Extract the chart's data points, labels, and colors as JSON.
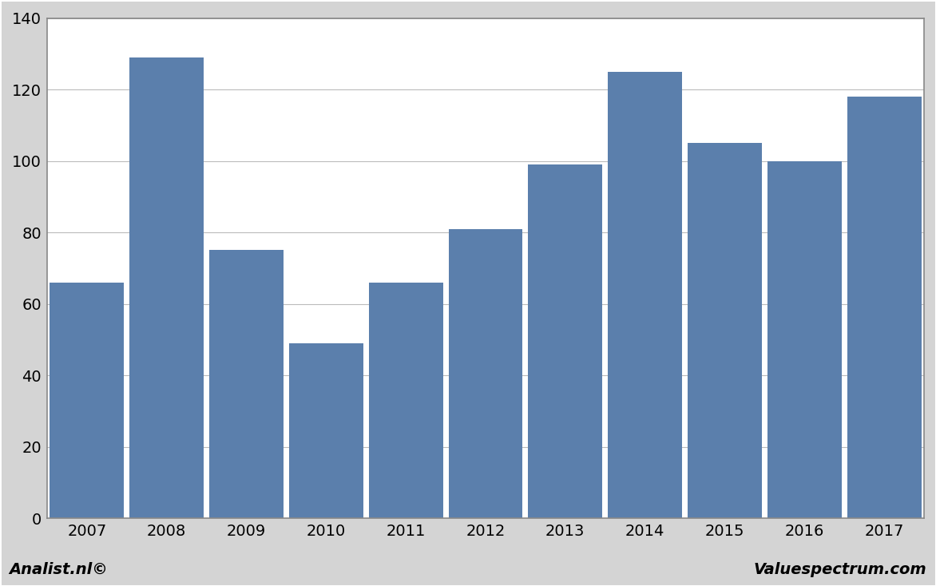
{
  "categories": [
    "2007",
    "2008",
    "2009",
    "2010",
    "2011",
    "2012",
    "2013",
    "2014",
    "2015",
    "2016",
    "2017"
  ],
  "values": [
    66,
    129,
    75,
    49,
    66,
    81,
    99,
    125,
    105,
    100,
    118
  ],
  "bar_color": "#5b7fac",
  "bar_width": 0.93,
  "ylim": [
    0,
    140
  ],
  "yticks": [
    0,
    20,
    40,
    60,
    80,
    100,
    120,
    140
  ],
  "background_color": "#d4d4d4",
  "plot_bg_color": "#ffffff",
  "grid_color": "#bbbbbb",
  "footer_left": "Analist.nl©",
  "footer_right": "Valuespectrum.com",
  "footer_fontsize": 14,
  "tick_fontsize": 14,
  "border_color": "#888888",
  "figure_border_color": "#888888"
}
